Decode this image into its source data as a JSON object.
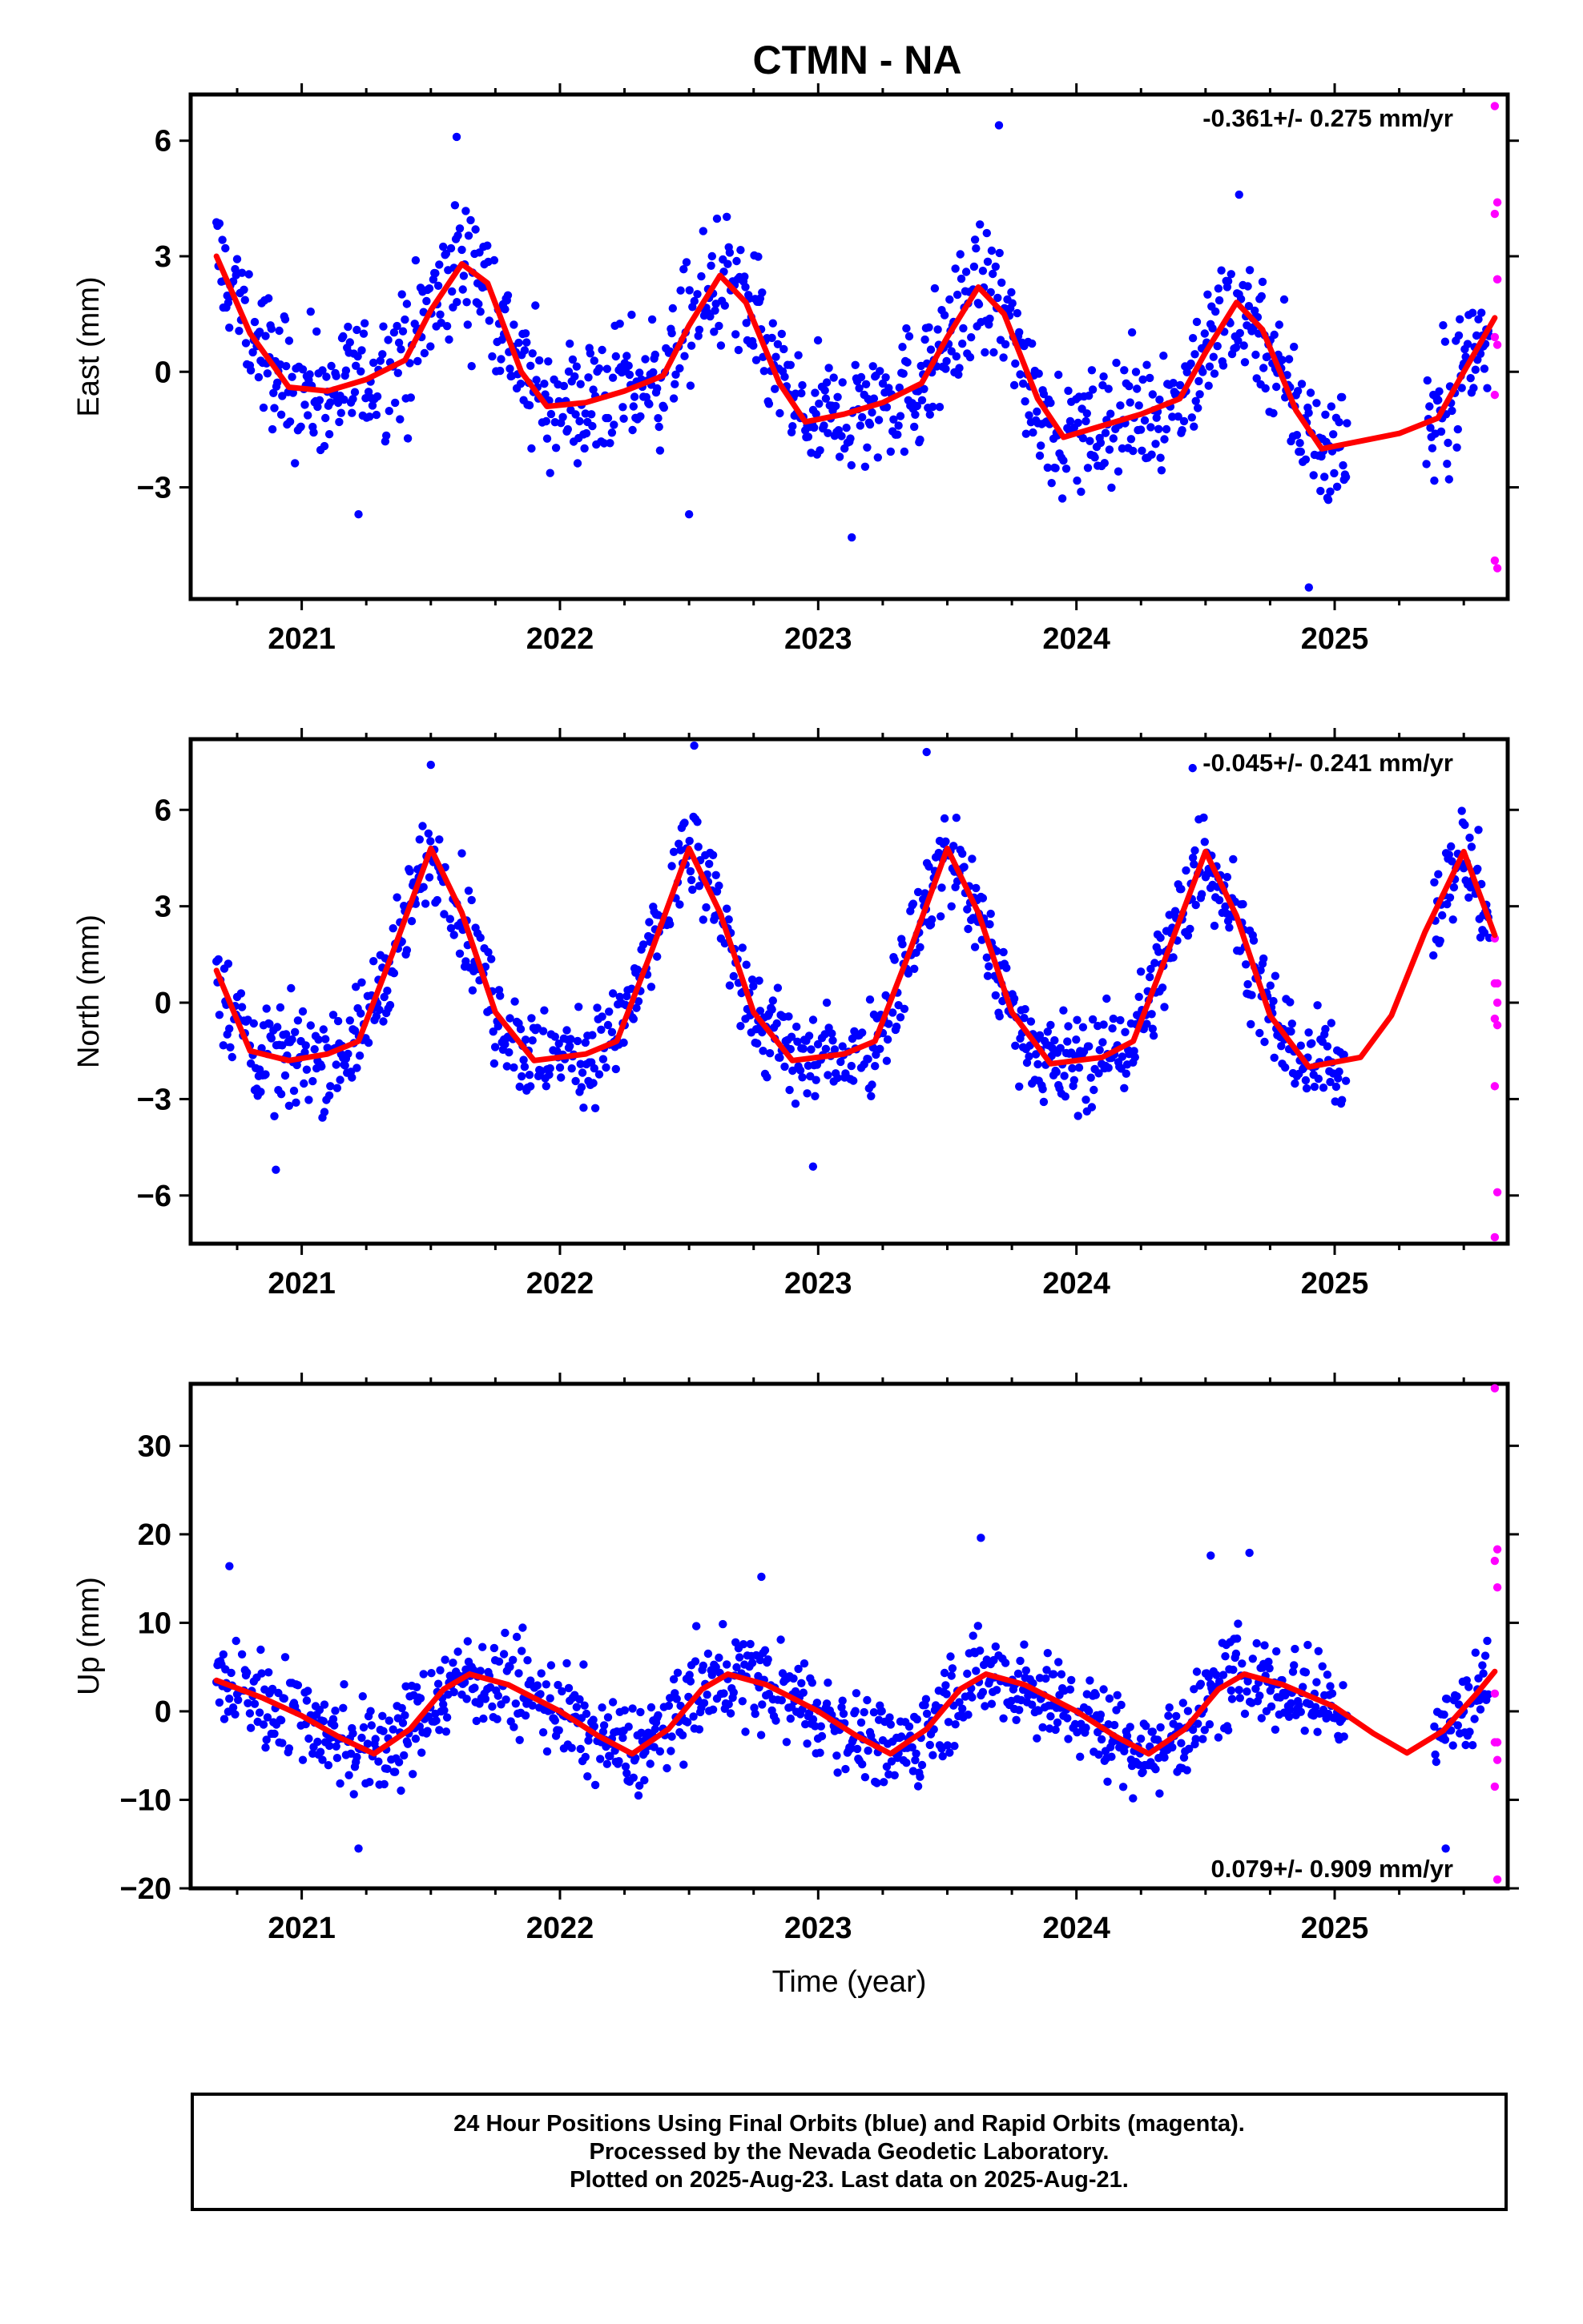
{
  "title": "CTMN - NA",
  "xlabel": "Time (year)",
  "footer": {
    "line1": "24 Hour Positions Using Final Orbits (blue) and Rapid Orbits (magenta).",
    "line2": "Processed by the Nevada Geodetic Laboratory.",
    "line3": "Plotted on 2025-Aug-23. Last data on 2025-Aug-21."
  },
  "colors": {
    "final": "#0000ff",
    "rapid": "#ff00ff",
    "model": "#ff0000",
    "axis": "#000000"
  },
  "chart_data": [
    {
      "type": "scatter",
      "component": "east",
      "ylabel": "East (mm)",
      "rate": "-0.361+/- 0.275 mm/yr",
      "xlim": [
        2020.57,
        2025.67
      ],
      "ylim": [
        -5.9,
        7.2
      ],
      "yticks": [
        -3,
        0,
        3,
        6
      ],
      "xticks": [
        2021,
        2022,
        2023,
        2024,
        2025
      ],
      "model": {
        "x": [
          2020.67,
          2020.8,
          2020.95,
          2021.1,
          2021.25,
          2021.4,
          2021.5,
          2021.62,
          2021.72,
          2021.85,
          2021.95,
          2022.1,
          2022.25,
          2022.4,
          2022.5,
          2022.62,
          2022.72,
          2022.85,
          2022.95,
          2023.1,
          2023.25,
          2023.4,
          2023.5,
          2023.62,
          2023.72,
          2023.85,
          2023.95,
          2024.1,
          2024.25,
          2024.4,
          2024.5,
          2024.62,
          2024.72,
          2024.85,
          2024.95,
          2025.1,
          2025.25,
          2025.4,
          2025.5,
          2025.62
        ],
        "y": [
          3.0,
          1.0,
          -0.4,
          -0.5,
          -0.2,
          0.3,
          1.6,
          2.8,
          2.3,
          0.0,
          -0.9,
          -0.8,
          -0.5,
          -0.1,
          1.2,
          2.5,
          1.8,
          -0.3,
          -1.3,
          -1.1,
          -0.8,
          -0.3,
          0.9,
          2.2,
          1.5,
          -0.7,
          -1.7,
          -1.4,
          -1.1,
          -0.7,
          0.5,
          1.8,
          1.1,
          -1.0,
          -2.0,
          -1.8,
          -1.6,
          -1.2,
          0.0,
          1.4
        ]
      },
      "final_summary": {
        "x_start": 2020.67,
        "x_end": 2025.6,
        "spread": 1.2
      },
      "rapid": {
        "x": [
          2025.62,
          2025.63,
          2025.62,
          2025.63,
          2025.62,
          2025.63,
          2025.62,
          2025.63,
          2025.62,
          2025.63
        ],
        "y": [
          6.9,
          4.4,
          4.1,
          2.4,
          0.9,
          0.7,
          -0.6,
          2.4,
          -4.9,
          -5.1
        ]
      },
      "outliers": {
        "x": [
          2021.6,
          2023.7,
          2024.63,
          2021.22,
          2022.5,
          2023.13,
          2024.9
        ],
        "y": [
          6.1,
          6.4,
          4.6,
          -3.7,
          -3.7,
          -4.3,
          -5.6
        ]
      }
    },
    {
      "type": "scatter",
      "component": "north",
      "ylabel": "North (mm)",
      "rate": "-0.045+/- 0.241 mm/yr",
      "xlim": [
        2020.57,
        2025.67
      ],
      "ylim": [
        -7.5,
        8.2
      ],
      "yticks": [
        -6,
        -3,
        0,
        3,
        6
      ],
      "xticks": [
        2021,
        2022,
        2023,
        2024,
        2025
      ],
      "model": {
        "x": [
          2020.67,
          2020.8,
          2020.95,
          2021.1,
          2021.22,
          2021.35,
          2021.5,
          2021.62,
          2021.75,
          2021.9,
          2022.1,
          2022.22,
          2022.35,
          2022.5,
          2022.62,
          2022.75,
          2022.9,
          2023.1,
          2023.22,
          2023.35,
          2023.5,
          2023.62,
          2023.75,
          2023.9,
          2024.1,
          2024.22,
          2024.35,
          2024.5,
          2024.62,
          2024.75,
          2024.9,
          2025.1,
          2025.22,
          2025.35,
          2025.5,
          2025.62
        ],
        "y": [
          1.0,
          -1.5,
          -1.8,
          -1.6,
          -1.2,
          1.5,
          4.8,
          2.8,
          -0.3,
          -1.8,
          -1.6,
          -1.2,
          1.5,
          4.8,
          2.8,
          -0.3,
          -1.8,
          -1.6,
          -1.2,
          1.5,
          4.8,
          2.8,
          -0.3,
          -1.9,
          -1.7,
          -1.2,
          1.5,
          4.7,
          2.7,
          -0.4,
          -2.0,
          -1.7,
          -0.4,
          2.2,
          4.7,
          2.1
        ]
      },
      "final_summary": {
        "x_start": 2020.67,
        "x_end": 2025.6,
        "spread": 1.1
      },
      "rapid": {
        "x": [
          2025.62,
          2025.63,
          2025.62,
          2025.63,
          2025.62,
          2025.63,
          2025.62,
          2025.63,
          2025.62
        ],
        "y": [
          2.0,
          0.6,
          0.6,
          0.0,
          -0.5,
          -0.7,
          -2.6,
          -5.9,
          -7.3
        ]
      },
      "outliers": {
        "x": [
          2022.52,
          2023.42,
          2020.9,
          2022.98,
          2021.5,
          2024.45
        ],
        "y": [
          8.0,
          7.8,
          -5.2,
          -5.1,
          7.4,
          7.3
        ]
      }
    },
    {
      "type": "scatter",
      "component": "up",
      "ylabel": "Up (mm)",
      "rate": "0.079+/- 0.909 mm/yr",
      "xlim": [
        2020.57,
        2025.67
      ],
      "ylim": [
        -20,
        37
      ],
      "yticks": [
        -20,
        -10,
        0,
        10,
        20,
        30
      ],
      "xticks": [
        2021,
        2022,
        2023,
        2024,
        2025
      ],
      "model": {
        "x": [
          2020.67,
          2020.85,
          2021.0,
          2021.15,
          2021.28,
          2021.42,
          2021.55,
          2021.65,
          2021.8,
          2022.0,
          2022.15,
          2022.28,
          2022.42,
          2022.55,
          2022.65,
          2022.8,
          2023.0,
          2023.15,
          2023.28,
          2023.42,
          2023.55,
          2023.65,
          2023.8,
          2024.0,
          2024.15,
          2024.28,
          2024.42,
          2024.55,
          2024.65,
          2024.8,
          2025.0,
          2025.15,
          2025.28,
          2025.42,
          2025.55,
          2025.62
        ],
        "y": [
          3.5,
          1.5,
          -0.5,
          -3.0,
          -4.8,
          -2.0,
          2.5,
          4.2,
          3.0,
          0.0,
          -2.8,
          -4.8,
          -2.0,
          2.5,
          4.2,
          3.0,
          0.0,
          -2.8,
          -4.8,
          -2.0,
          2.5,
          4.2,
          3.0,
          0.0,
          -2.8,
          -4.8,
          -2.0,
          2.5,
          4.2,
          3.0,
          0.5,
          -2.5,
          -4.7,
          -2.2,
          2.0,
          4.5
        ]
      },
      "final_summary": {
        "x_start": 2020.67,
        "x_end": 2025.6,
        "spread": 3.8
      },
      "rapid": {
        "x": [
          2025.62,
          2025.63,
          2025.62,
          2025.63,
          2025.62,
          2025.63,
          2025.62,
          2025.63,
          2025.62,
          2025.63
        ],
        "y": [
          36.5,
          18.3,
          17.0,
          14.0,
          2.0,
          -3.5,
          -3.5,
          -5.5,
          -8.5,
          -19.0
        ]
      },
      "outliers": {
        "x": [
          2023.63,
          2021.22,
          2025.43,
          2024.52,
          2024.67,
          2020.72,
          2022.78
        ],
        "y": [
          19.6,
          -15.5,
          -15.5,
          17.6,
          17.9,
          16.4,
          15.2
        ]
      }
    }
  ]
}
